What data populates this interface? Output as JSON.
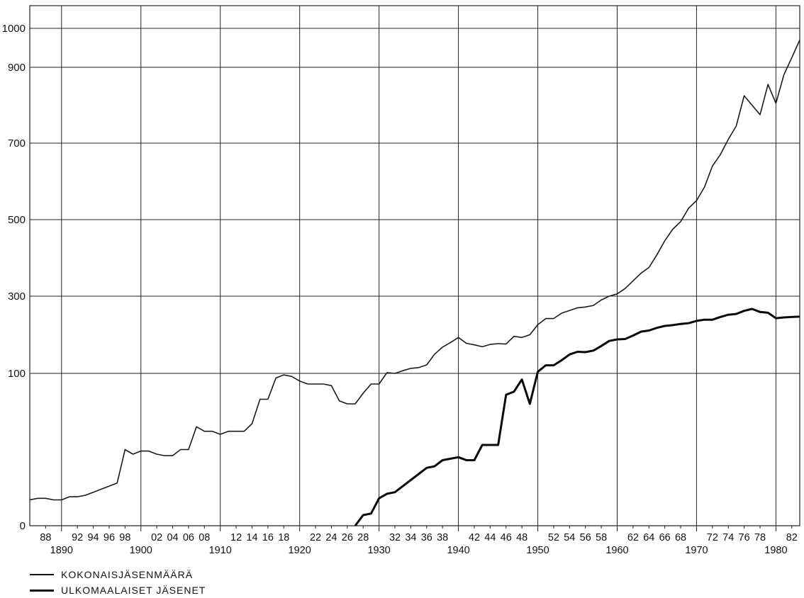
{
  "chart_data": {
    "type": "line",
    "title": "",
    "xlabel": "",
    "ylabel": "",
    "xlim": [
      1886,
      1983
    ],
    "y_tick_labels": [
      "0",
      "100",
      "300",
      "500",
      "700",
      "900",
      "1000"
    ],
    "y_tick_values": [
      0,
      100,
      300,
      500,
      700,
      900,
      1000
    ],
    "x_minor_tick_labels": [
      {
        "x": 1888,
        "label": "88"
      },
      {
        "x": 1892,
        "label": "92"
      },
      {
        "x": 1894,
        "label": "94"
      },
      {
        "x": 1896,
        "label": "96"
      },
      {
        "x": 1898,
        "label": "98"
      },
      {
        "x": 1902,
        "label": "02"
      },
      {
        "x": 1904,
        "label": "04"
      },
      {
        "x": 1906,
        "label": "06"
      },
      {
        "x": 1908,
        "label": "08"
      },
      {
        "x": 1912,
        "label": "12"
      },
      {
        "x": 1914,
        "label": "14"
      },
      {
        "x": 1916,
        "label": "16"
      },
      {
        "x": 1918,
        "label": "18"
      },
      {
        "x": 1922,
        "label": "22"
      },
      {
        "x": 1924,
        "label": "24"
      },
      {
        "x": 1926,
        "label": "26"
      },
      {
        "x": 1928,
        "label": "28"
      },
      {
        "x": 1932,
        "label": "32"
      },
      {
        "x": 1934,
        "label": "34"
      },
      {
        "x": 1936,
        "label": "36"
      },
      {
        "x": 1938,
        "label": "38"
      },
      {
        "x": 1942,
        "label": "42"
      },
      {
        "x": 1944,
        "label": "44"
      },
      {
        "x": 1946,
        "label": "46"
      },
      {
        "x": 1948,
        "label": "48"
      },
      {
        "x": 1952,
        "label": "52"
      },
      {
        "x": 1954,
        "label": "54"
      },
      {
        "x": 1956,
        "label": "56"
      },
      {
        "x": 1958,
        "label": "58"
      },
      {
        "x": 1962,
        "label": "62"
      },
      {
        "x": 1964,
        "label": "64"
      },
      {
        "x": 1966,
        "label": "66"
      },
      {
        "x": 1968,
        "label": "68"
      },
      {
        "x": 1972,
        "label": "72"
      },
      {
        "x": 1974,
        "label": "74"
      },
      {
        "x": 1976,
        "label": "76"
      },
      {
        "x": 1978,
        "label": "78"
      },
      {
        "x": 1982,
        "label": "82"
      }
    ],
    "x_major_tick_labels": [
      {
        "x": 1890,
        "label": "1890"
      },
      {
        "x": 1900,
        "label": "1900"
      },
      {
        "x": 1910,
        "label": "1910"
      },
      {
        "x": 1920,
        "label": "1920"
      },
      {
        "x": 1930,
        "label": "1930"
      },
      {
        "x": 1940,
        "label": "1940"
      },
      {
        "x": 1950,
        "label": "1950"
      },
      {
        "x": 1960,
        "label": "1960"
      },
      {
        "x": 1970,
        "label": "1970"
      },
      {
        "x": 1980,
        "label": "1980"
      }
    ],
    "grid": true,
    "legend_position": "bottom-left",
    "series": [
      {
        "name": "KOKONAISJÄSENMÄÄRÄ",
        "color": "#1a1a1a",
        "style": "thin",
        "points": [
          [
            1886,
            17
          ],
          [
            1887,
            18
          ],
          [
            1888,
            18
          ],
          [
            1889,
            17
          ],
          [
            1890,
            17
          ],
          [
            1891,
            19
          ],
          [
            1892,
            19
          ],
          [
            1893,
            20
          ],
          [
            1894,
            22
          ],
          [
            1895,
            24
          ],
          [
            1896,
            26
          ],
          [
            1897,
            28
          ],
          [
            1898,
            50
          ],
          [
            1899,
            47
          ],
          [
            1900,
            49
          ],
          [
            1901,
            49
          ],
          [
            1902,
            47
          ],
          [
            1903,
            46
          ],
          [
            1904,
            46
          ],
          [
            1905,
            50
          ],
          [
            1906,
            50
          ],
          [
            1907,
            65
          ],
          [
            1908,
            62
          ],
          [
            1909,
            62
          ],
          [
            1910,
            60
          ],
          [
            1911,
            62
          ],
          [
            1912,
            62
          ],
          [
            1913,
            62
          ],
          [
            1914,
            67
          ],
          [
            1915,
            83
          ],
          [
            1916,
            83
          ],
          [
            1917,
            97
          ],
          [
            1918,
            99
          ],
          [
            1919,
            98
          ],
          [
            1920,
            95
          ],
          [
            1921,
            93
          ],
          [
            1922,
            93
          ],
          [
            1923,
            93
          ],
          [
            1924,
            92
          ],
          [
            1925,
            82
          ],
          [
            1926,
            80
          ],
          [
            1927,
            80
          ],
          [
            1928,
            87
          ],
          [
            1929,
            93
          ],
          [
            1930,
            93
          ],
          [
            1931,
            102
          ],
          [
            1932,
            100
          ],
          [
            1933,
            107
          ],
          [
            1934,
            113
          ],
          [
            1935,
            115
          ],
          [
            1936,
            122
          ],
          [
            1937,
            150
          ],
          [
            1938,
            168
          ],
          [
            1939,
            180
          ],
          [
            1940,
            193
          ],
          [
            1941,
            178
          ],
          [
            1942,
            174
          ],
          [
            1943,
            169
          ],
          [
            1944,
            175
          ],
          [
            1945,
            177
          ],
          [
            1946,
            176
          ],
          [
            1947,
            196
          ],
          [
            1948,
            193
          ],
          [
            1949,
            200
          ],
          [
            1950,
            226
          ],
          [
            1951,
            242
          ],
          [
            1952,
            242
          ],
          [
            1953,
            256
          ],
          [
            1954,
            263
          ],
          [
            1955,
            270
          ],
          [
            1956,
            272
          ],
          [
            1957,
            276
          ],
          [
            1958,
            290
          ],
          [
            1959,
            300
          ],
          [
            1960,
            306
          ],
          [
            1961,
            320
          ],
          [
            1962,
            340
          ],
          [
            1963,
            360
          ],
          [
            1964,
            375
          ],
          [
            1965,
            408
          ],
          [
            1966,
            445
          ],
          [
            1967,
            475
          ],
          [
            1968,
            495
          ],
          [
            1969,
            530
          ],
          [
            1970,
            550
          ],
          [
            1971,
            585
          ],
          [
            1972,
            640
          ],
          [
            1973,
            670
          ],
          [
            1974,
            710
          ],
          [
            1975,
            745
          ],
          [
            1976,
            825
          ],
          [
            1977,
            800
          ],
          [
            1978,
            775
          ],
          [
            1979,
            855
          ],
          [
            1980,
            805
          ],
          [
            1981,
            880
          ],
          [
            1982,
            925
          ],
          [
            1983,
            970
          ]
        ]
      },
      {
        "name": "ULKOMAALAISET JÄSENET",
        "color": "#0a0a0a",
        "style": "thick",
        "points": [
          [
            1927,
            0
          ],
          [
            1928,
            7
          ],
          [
            1929,
            8
          ],
          [
            1930,
            18
          ],
          [
            1931,
            21
          ],
          [
            1932,
            22
          ],
          [
            1933,
            26
          ],
          [
            1934,
            30
          ],
          [
            1935,
            34
          ],
          [
            1936,
            38
          ],
          [
            1937,
            39
          ],
          [
            1938,
            43
          ],
          [
            1939,
            44
          ],
          [
            1940,
            45
          ],
          [
            1941,
            43
          ],
          [
            1942,
            43
          ],
          [
            1943,
            53
          ],
          [
            1944,
            53
          ],
          [
            1945,
            53
          ],
          [
            1946,
            86
          ],
          [
            1947,
            88
          ],
          [
            1948,
            96
          ],
          [
            1949,
            80
          ],
          [
            1950,
            104
          ],
          [
            1951,
            121
          ],
          [
            1952,
            121
          ],
          [
            1953,
            134
          ],
          [
            1954,
            149
          ],
          [
            1955,
            156
          ],
          [
            1956,
            155
          ],
          [
            1957,
            159
          ],
          [
            1958,
            171
          ],
          [
            1959,
            184
          ],
          [
            1960,
            188
          ],
          [
            1961,
            189
          ],
          [
            1962,
            198
          ],
          [
            1963,
            208
          ],
          [
            1964,
            211
          ],
          [
            1965,
            218
          ],
          [
            1966,
            223
          ],
          [
            1967,
            225
          ],
          [
            1968,
            228
          ],
          [
            1969,
            230
          ],
          [
            1970,
            236
          ],
          [
            1971,
            239
          ],
          [
            1972,
            239
          ],
          [
            1973,
            246
          ],
          [
            1974,
            252
          ],
          [
            1975,
            254
          ],
          [
            1976,
            262
          ],
          [
            1977,
            267
          ],
          [
            1978,
            259
          ],
          [
            1979,
            257
          ],
          [
            1980,
            243
          ],
          [
            1981,
            245
          ],
          [
            1982,
            246
          ],
          [
            1983,
            247
          ]
        ]
      }
    ]
  }
}
